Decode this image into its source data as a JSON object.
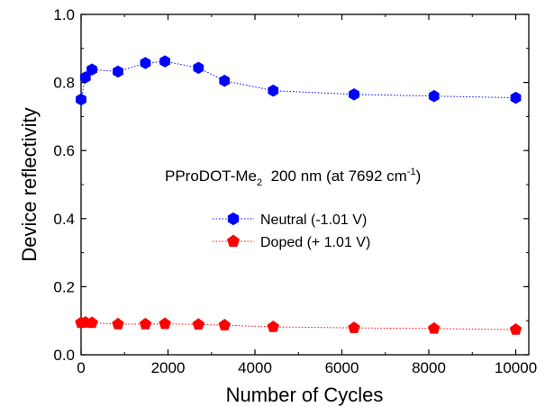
{
  "chart_data": {
    "type": "scatter",
    "title": "",
    "xlabel": "Number of Cycles",
    "ylabel": "Device reflectivity",
    "xlim": [
      0,
      10300
    ],
    "ylim": [
      0.0,
      1.0
    ],
    "xticks": [
      0,
      2000,
      4000,
      6000,
      8000,
      10000
    ],
    "xtick_labels": [
      "0",
      "2000",
      "4000",
      "6000",
      "8000",
      "10000"
    ],
    "yticks": [
      0.0,
      0.2,
      0.4,
      0.6,
      0.8,
      1.0
    ],
    "ytick_labels": [
      "0.0",
      "0.2",
      "0.4",
      "0.6",
      "0.8",
      "1.0"
    ],
    "grid": false,
    "legend_position": "center",
    "annotation": {
      "main": "PProDOT-Me",
      "sub": "2",
      "mid": "  200 nm (at 7692 cm",
      "sup": "-1",
      "end": ")"
    },
    "series": [
      {
        "name": "Neutral (-1.01 V)",
        "color": "#0000ff",
        "marker": "hexagon",
        "line": "dotted",
        "x": [
          0,
          100,
          250,
          850,
          1480,
          1930,
          2700,
          3300,
          4420,
          6280,
          8120,
          10000
        ],
        "y": [
          0.75,
          0.815,
          0.838,
          0.832,
          0.857,
          0.862,
          0.843,
          0.805,
          0.776,
          0.765,
          0.76,
          0.755
        ]
      },
      {
        "name": "Doped (+ 1.01 V)",
        "color": "#ff0000",
        "marker": "pentagon",
        "line": "dotted",
        "x": [
          0,
          100,
          250,
          850,
          1480,
          1930,
          2700,
          3300,
          4420,
          6280,
          8120,
          10000
        ],
        "y": [
          0.094,
          0.095,
          0.094,
          0.09,
          0.09,
          0.091,
          0.089,
          0.087,
          0.082,
          0.079,
          0.077,
          0.074
        ]
      }
    ]
  }
}
